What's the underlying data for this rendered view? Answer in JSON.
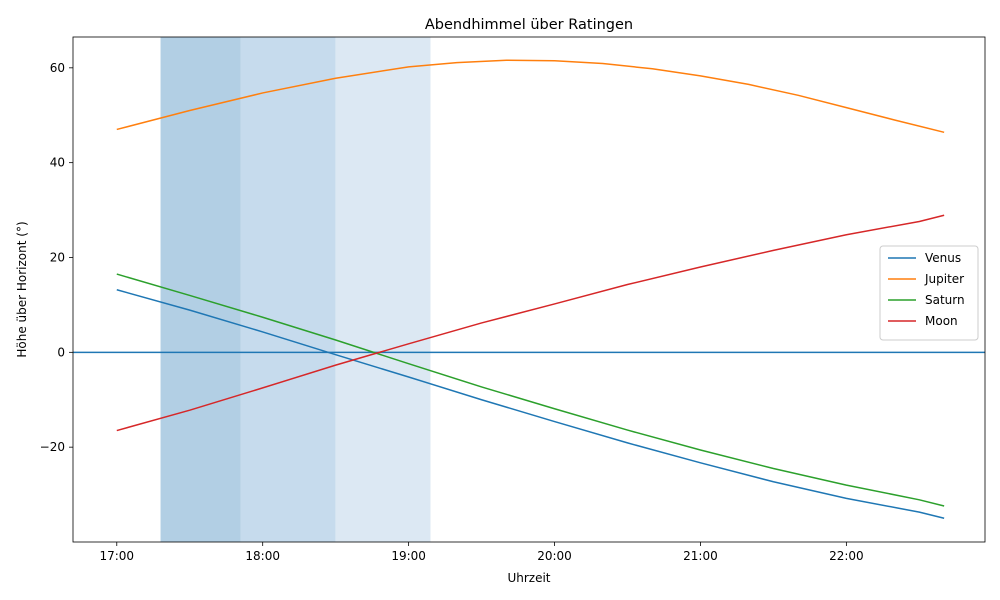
{
  "chart_data": {
    "type": "line",
    "title": "Abendhimmel über Ratingen",
    "xlabel": "Uhrzeit",
    "ylabel": "Höhe über Horizont (°)",
    "x_domain_hours": [
      16.7,
      22.95
    ],
    "ylim": [
      -40,
      66.5
    ],
    "x_ticks": [
      {
        "hour": 17,
        "label": "17:00"
      },
      {
        "hour": 18,
        "label": "18:00"
      },
      {
        "hour": 19,
        "label": "19:00"
      },
      {
        "hour": 20,
        "label": "20:00"
      },
      {
        "hour": 21,
        "label": "21:00"
      },
      {
        "hour": 22,
        "label": "22:00"
      }
    ],
    "y_ticks": [
      {
        "value": -20,
        "label": "−20"
      },
      {
        "value": 0,
        "label": "0"
      },
      {
        "value": 20,
        "label": "20"
      },
      {
        "value": 40,
        "label": "40"
      },
      {
        "value": 60,
        "label": "60"
      }
    ],
    "twilight_bands": [
      {
        "start": 17.3,
        "end": 17.85,
        "color": "#b2cfe4"
      },
      {
        "start": 17.85,
        "end": 18.5,
        "color": "#c6dbed"
      },
      {
        "start": 18.5,
        "end": 19.15,
        "color": "#dce8f3"
      }
    ],
    "horizon_line": {
      "value": 0,
      "color": "#1f77b4"
    },
    "legend_position": "right",
    "series": [
      {
        "name": "Venus",
        "color": "#1f77b4",
        "points": [
          [
            17.0,
            13.2
          ],
          [
            17.5,
            8.9
          ],
          [
            18.0,
            4.3
          ],
          [
            18.5,
            -0.5
          ],
          [
            19.0,
            -5.2
          ],
          [
            19.5,
            -10.0
          ],
          [
            20.0,
            -14.6
          ],
          [
            20.5,
            -19.1
          ],
          [
            21.0,
            -23.3
          ],
          [
            21.5,
            -27.3
          ],
          [
            22.0,
            -30.8
          ],
          [
            22.5,
            -33.7
          ],
          [
            22.67,
            -35.0
          ]
        ]
      },
      {
        "name": "Jupiter",
        "color": "#ff7f0e",
        "points": [
          [
            17.0,
            47.0
          ],
          [
            17.5,
            51.0
          ],
          [
            18.0,
            54.7
          ],
          [
            18.5,
            57.8
          ],
          [
            19.0,
            60.2
          ],
          [
            19.33,
            61.1
          ],
          [
            19.67,
            61.6
          ],
          [
            20.0,
            61.5
          ],
          [
            20.33,
            60.9
          ],
          [
            20.67,
            59.8
          ],
          [
            21.0,
            58.3
          ],
          [
            21.33,
            56.5
          ],
          [
            21.67,
            54.2
          ],
          [
            22.0,
            51.6
          ],
          [
            22.33,
            49.0
          ],
          [
            22.67,
            46.4
          ]
        ]
      },
      {
        "name": "Saturn",
        "color": "#2ca02c",
        "points": [
          [
            17.0,
            16.5
          ],
          [
            17.5,
            12.0
          ],
          [
            18.0,
            7.4
          ],
          [
            18.5,
            2.6
          ],
          [
            19.0,
            -2.4
          ],
          [
            19.5,
            -7.3
          ],
          [
            20.0,
            -11.9
          ],
          [
            20.5,
            -16.4
          ],
          [
            21.0,
            -20.6
          ],
          [
            21.5,
            -24.5
          ],
          [
            22.0,
            -28.0
          ],
          [
            22.5,
            -31.1
          ],
          [
            22.67,
            -32.4
          ]
        ]
      },
      {
        "name": "Moon",
        "color": "#d62728",
        "points": [
          [
            17.0,
            -16.5
          ],
          [
            17.5,
            -12.2
          ],
          [
            18.0,
            -7.5
          ],
          [
            18.5,
            -2.7
          ],
          [
            19.0,
            1.8
          ],
          [
            19.5,
            6.2
          ],
          [
            20.0,
            10.2
          ],
          [
            20.5,
            14.3
          ],
          [
            21.0,
            18.0
          ],
          [
            21.5,
            21.5
          ],
          [
            22.0,
            24.8
          ],
          [
            22.5,
            27.6
          ],
          [
            22.67,
            28.9
          ]
        ]
      }
    ]
  }
}
